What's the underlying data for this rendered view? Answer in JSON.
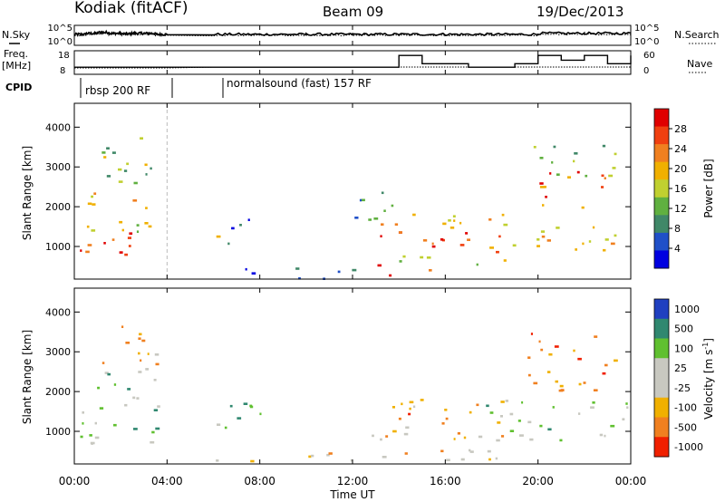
{
  "header": {
    "station": "Kodiak (fitACF)",
    "beam": "Beam 09",
    "date": "19/Dec/2013"
  },
  "left_labels": {
    "nsky": "N.Sky",
    "freq_line1": "Freq.",
    "freq_line2": "[MHz]",
    "cpid": "CPID"
  },
  "right_labels": {
    "nsearch": "N.Search",
    "nave": "Nave"
  },
  "cpid_segments": [
    {
      "label": "rbsp 200 RF",
      "start": 0.0,
      "end": 4.0
    },
    {
      "label": "normalsound (fast) 157 RF",
      "start": 6.0,
      "end": 24.0
    }
  ],
  "chart_data": [
    {
      "type": "line",
      "title": "",
      "ylabel_left": "N.Sky",
      "ylabel_right": "N.Search",
      "yticks_left": [
        "10^5",
        "10^0"
      ],
      "yticks_right": [
        "10^5",
        "10^0"
      ],
      "series": [
        {
          "name": "N.Sky",
          "x": [
            0.0,
            0.5,
            1.0,
            1.5,
            2.0,
            2.5,
            3.0,
            3.5,
            4.0,
            6.0,
            8.0,
            10.0,
            12.0,
            14.0,
            16.0,
            18.0,
            20.0,
            22.0,
            24.0
          ],
          "y_frac": [
            0.55,
            0.6,
            0.65,
            0.6,
            0.58,
            0.6,
            0.6,
            0.55,
            0.55,
            0.55,
            0.55,
            0.55,
            0.55,
            0.55,
            0.55,
            0.55,
            0.6,
            0.6,
            0.55
          ]
        }
      ]
    },
    {
      "type": "line",
      "ylabel_left": "Freq. [MHz]",
      "ylabel_right": "Nave",
      "yticks_left": [
        "18",
        "8"
      ],
      "yticks_right": [
        "60",
        "0"
      ],
      "series": [
        {
          "name": "Freq",
          "x": [
            0.0,
            4.0,
            6.0,
            13.0,
            14.0,
            15.0,
            17.0,
            19.0,
            20.0,
            21.0,
            22.0,
            23.0,
            24.0
          ],
          "y_frac": [
            0.3,
            0.3,
            0.3,
            0.3,
            0.8,
            0.45,
            0.3,
            0.45,
            0.8,
            0.6,
            0.8,
            0.45,
            0.8
          ]
        }
      ]
    },
    {
      "type": "heatmap",
      "ylabel": "Slant Range [km]",
      "ylim": [
        180,
        4600
      ],
      "yticks": [
        1000,
        2000,
        3000,
        4000
      ],
      "xlim": [
        0,
        24
      ],
      "colorbar": {
        "label": "Power [dB]",
        "ticks": [
          4,
          8,
          12,
          16,
          20,
          24,
          28
        ],
        "range": [
          0,
          32
        ]
      },
      "colors": [
        "#0000e0",
        "#2050c8",
        "#408868",
        "#60b040",
        "#c0d030",
        "#f0b000",
        "#f08020",
        "#f04010",
        "#e00000"
      ],
      "regions": [
        {
          "x0": 0.2,
          "x1": 3.8,
          "r0": 700,
          "r1": 1400,
          "level": 0.9
        },
        {
          "x0": 0.5,
          "x1": 3.5,
          "r0": 1400,
          "r1": 2600,
          "level": 0.6
        },
        {
          "x0": 0.5,
          "x1": 3.5,
          "r0": 2600,
          "r1": 3800,
          "level": 0.4
        },
        {
          "x0": 6.0,
          "x1": 7.0,
          "r0": 900,
          "r1": 1400,
          "level": 0.5
        },
        {
          "x0": 6.5,
          "x1": 8.0,
          "r0": 1400,
          "r1": 1900,
          "level": 0.2
        },
        {
          "x0": 6.0,
          "x1": 12.0,
          "r0": 200,
          "r1": 500,
          "level": 0.15
        },
        {
          "x0": 12.8,
          "x1": 18.5,
          "r0": 800,
          "r1": 1400,
          "level": 0.85
        },
        {
          "x0": 12.5,
          "x1": 19.0,
          "r0": 1400,
          "r1": 1900,
          "level": 0.6
        },
        {
          "x0": 13.0,
          "x1": 15.5,
          "r0": 300,
          "r1": 600,
          "level": 0.9
        },
        {
          "x0": 14.0,
          "x1": 19.0,
          "r0": 500,
          "r1": 800,
          "level": 0.5
        },
        {
          "x0": 17.5,
          "x1": 23.5,
          "r0": 900,
          "r1": 1600,
          "level": 0.6
        },
        {
          "x0": 20.0,
          "x1": 23.0,
          "r0": 2000,
          "r1": 3000,
          "level": 0.75
        },
        {
          "x0": 19.5,
          "x1": 23.5,
          "r0": 2800,
          "r1": 3600,
          "level": 0.4
        },
        {
          "x0": 12.0,
          "x1": 14.0,
          "r0": 1700,
          "r1": 2600,
          "level": 0.3
        }
      ]
    },
    {
      "type": "heatmap",
      "ylabel": "Slant Range [km]",
      "ylim": [
        180,
        4600
      ],
      "yticks": [
        1000,
        2000,
        3000,
        4000
      ],
      "xlim": [
        0,
        24
      ],
      "colorbar": {
        "label": "Velocity [m s^-1]",
        "ticks": [
          1000,
          500,
          100,
          25,
          -25,
          -100,
          -500,
          -1000
        ]
      },
      "colors": [
        "#2040c0",
        "#308870",
        "#60c030",
        "#c8c8c0",
        "#c8c8c0",
        "#f0b000",
        "#f08020",
        "#f02000"
      ],
      "regions": [
        {
          "x0": 0.2,
          "x1": 3.8,
          "r0": 700,
          "r1": 1800,
          "level": 0.38
        },
        {
          "x0": 0.5,
          "x1": 3.5,
          "r0": 1800,
          "r1": 2500,
          "level": 0.38
        },
        {
          "x0": 3.2,
          "x1": 3.9,
          "r0": 900,
          "r1": 1600,
          "level": 0.2
        },
        {
          "x0": 1.0,
          "x1": 3.5,
          "r0": 2500,
          "r1": 3800,
          "level": 0.7
        },
        {
          "x0": 6.0,
          "x1": 8.0,
          "r0": 900,
          "r1": 1900,
          "level": 0.22
        },
        {
          "x0": 6.0,
          "x1": 12.0,
          "r0": 200,
          "r1": 500,
          "level": 0.6
        },
        {
          "x0": 12.8,
          "x1": 18.5,
          "r0": 900,
          "r1": 1900,
          "level": 0.72
        },
        {
          "x0": 12.5,
          "x1": 18.5,
          "r0": 300,
          "r1": 900,
          "level": 0.62
        },
        {
          "x0": 17.5,
          "x1": 24.0,
          "r0": 800,
          "r1": 1800,
          "level": 0.38
        },
        {
          "x0": 19.5,
          "x1": 23.5,
          "r0": 2000,
          "r1": 3500,
          "level": 0.8
        }
      ]
    }
  ],
  "x_axis": {
    "ticks": [
      "00:00",
      "04:00",
      "08:00",
      "12:00",
      "16:00",
      "20:00",
      "00:00"
    ],
    "label": "Time UT"
  },
  "colorbar_labels": {
    "power": [
      "28",
      "24",
      "20",
      "16",
      "12",
      "8",
      "4"
    ],
    "velocity": [
      "1000",
      "500",
      "100",
      "25",
      "-25",
      "-100",
      "-500",
      "-1000"
    ]
  },
  "yaxis_labels": {
    "range": "Slant Range [km]",
    "power": "Power [dB]",
    "velocity_base": "Velocity [m s",
    "velocity_sup": "-1",
    "velocity_end": "]"
  }
}
